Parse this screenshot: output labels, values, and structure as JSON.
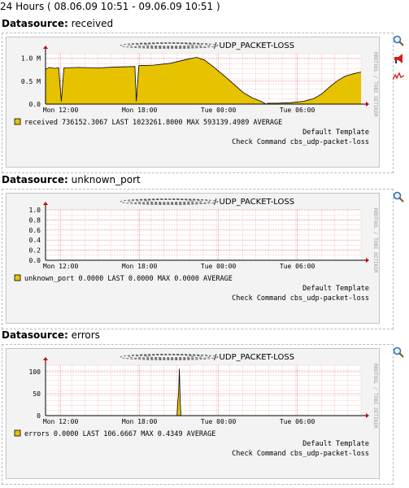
{
  "header": {
    "period": "24 Hours ( 08.06.09 10:51 - 09.06.09 10:51 )"
  },
  "colors": {
    "area": "#e6c200",
    "area_edge": "#8c7400",
    "grid": "#f0a0a0",
    "background": "#f3f3f3",
    "canvas": "#ffffff"
  },
  "icons": [
    "magnifier-icon",
    "megaphone-icon",
    "zigzag-line-icon"
  ],
  "panels": [
    {
      "ds_label": "Datasource:",
      "ds_name": "received",
      "title": "/  UDP_PACKET-LOSS",
      "side_text": "RRDTOOL / TOBI OETIKER",
      "legend": {
        "name": "received",
        "last": "736152.3067",
        "last_label": "LAST",
        "max": "1023261.8000",
        "max_label": "MAX",
        "avg": "593139.4989",
        "avg_label": "AVERAGE",
        "template": "Default Template",
        "command": "Check Command cbs_udp-packet-loss"
      },
      "chart_data": {
        "type": "area",
        "ylim": [
          0,
          1100000
        ],
        "yticks": [
          {
            "v": 0,
            "t": "0.0"
          },
          {
            "v": 500000,
            "t": "0.5 M"
          },
          {
            "v": 1000000,
            "t": "1.0 M"
          }
        ],
        "xticks": [
          {
            "h": 1.15,
            "t": "Mon 12:00"
          },
          {
            "h": 7.15,
            "t": "Mon 18:00"
          },
          {
            "h": 13.15,
            "t": "Tue 00:00"
          },
          {
            "h": 19.15,
            "t": "Tue 06:00"
          }
        ],
        "xlim_hours": [
          0,
          24
        ],
        "points": [
          [
            0,
            760000
          ],
          [
            0.3,
            800000
          ],
          [
            0.7,
            780000
          ],
          [
            1.0,
            790000
          ],
          [
            1.2,
            60000
          ],
          [
            1.4,
            790000
          ],
          [
            2.5,
            800000
          ],
          [
            4.0,
            790000
          ],
          [
            5.5,
            810000
          ],
          [
            6.8,
            820000
          ],
          [
            6.9,
            60000
          ],
          [
            7.1,
            840000
          ],
          [
            8.2,
            850000
          ],
          [
            9.5,
            890000
          ],
          [
            10.8,
            980000
          ],
          [
            11.5,
            1020000
          ],
          [
            12.1,
            960000
          ],
          [
            12.7,
            830000
          ],
          [
            13.5,
            640000
          ],
          [
            14.3,
            440000
          ],
          [
            15.0,
            260000
          ],
          [
            15.7,
            140000
          ],
          [
            16.4,
            60000
          ],
          [
            16.7,
            10000
          ],
          [
            16.8,
            -40000
          ],
          [
            16.9,
            20000
          ],
          [
            17.6,
            20000
          ],
          [
            18.6,
            30000
          ],
          [
            19.6,
            60000
          ],
          [
            20.4,
            120000
          ],
          [
            21.0,
            220000
          ],
          [
            21.6,
            370000
          ],
          [
            22.2,
            510000
          ],
          [
            22.8,
            610000
          ],
          [
            23.4,
            660000
          ],
          [
            24.0,
            700000
          ]
        ]
      }
    },
    {
      "ds_label": "Datasource:",
      "ds_name": "unknown_port",
      "title": "/  UDP_PACKET-LOSS",
      "side_text": "RRDTOOL / TOBI OETIKER",
      "legend": {
        "name": "unknown_port",
        "last": "0.0000",
        "last_label": "LAST",
        "max": "0.0000",
        "max_label": "MAX",
        "avg": "0.0000",
        "avg_label": "AVERAGE",
        "template": "Default Template",
        "command": "Check Command cbs_udp-packet-loss"
      },
      "chart_data": {
        "type": "area",
        "ylim": [
          0,
          1.0
        ],
        "yticks": [
          {
            "v": 0,
            "t": "0.0"
          },
          {
            "v": 0.2,
            "t": "0.2"
          },
          {
            "v": 0.4,
            "t": "0.4"
          },
          {
            "v": 0.6,
            "t": "0.6"
          },
          {
            "v": 0.8,
            "t": "0.8"
          },
          {
            "v": 1.0,
            "t": "1.0"
          }
        ],
        "xticks": [
          {
            "h": 1.15,
            "t": "Mon 12:00"
          },
          {
            "h": 7.15,
            "t": "Mon 18:00"
          },
          {
            "h": 13.15,
            "t": "Tue 00:00"
          },
          {
            "h": 19.15,
            "t": "Tue 06:00"
          }
        ],
        "xlim_hours": [
          0,
          24
        ],
        "points": [
          [
            0,
            0
          ],
          [
            24,
            0
          ]
        ]
      }
    },
    {
      "ds_label": "Datasource:",
      "ds_name": "errors",
      "title": "/  UDP_PACKET-LOSS",
      "side_text": "RRDTOOL / TOBI OETIKER",
      "legend": {
        "name": "errors",
        "last": "0.0000",
        "last_label": "LAST",
        "max": "106.6667",
        "max_label": "MAX",
        "avg": "0.4349",
        "avg_label": "AVERAGE",
        "template": "Default Template",
        "command": "Check Command cbs_udp-packet-loss"
      },
      "chart_data": {
        "type": "area",
        "ylim": [
          0,
          115
        ],
        "yticks": [
          {
            "v": 0,
            "t": "0"
          },
          {
            "v": 50,
            "t": "50"
          },
          {
            "v": 100,
            "t": "100"
          }
        ],
        "xticks": [
          {
            "h": 1.15,
            "t": "Mon 12:00"
          },
          {
            "h": 7.15,
            "t": "Mon 18:00"
          },
          {
            "h": 13.15,
            "t": "Tue 00:00"
          },
          {
            "h": 19.15,
            "t": "Tue 06:00"
          }
        ],
        "xlim_hours": [
          0,
          24
        ],
        "points": [
          [
            0,
            0
          ],
          [
            10.0,
            0
          ],
          [
            10.05,
            30
          ],
          [
            10.12,
            50
          ],
          [
            10.18,
            106.6667
          ],
          [
            10.24,
            40
          ],
          [
            10.3,
            0
          ],
          [
            24,
            0
          ]
        ]
      }
    }
  ]
}
